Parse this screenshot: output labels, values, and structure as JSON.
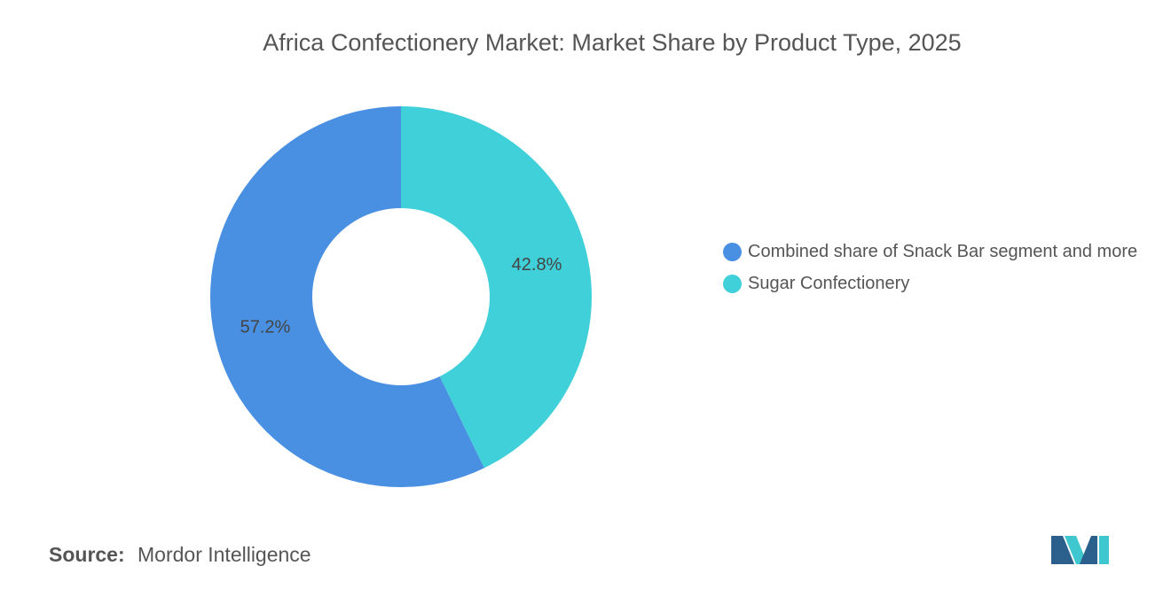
{
  "chart_data": {
    "type": "donut",
    "title": "Africa Confectionery Market: Market Share by Product Type, 2025",
    "categories": [
      "Combined share of Snack Bar segment and more",
      "Sugar Confectionery"
    ],
    "values": [
      57.2,
      42.8
    ],
    "value_labels": [
      "57.2%",
      "42.8%"
    ],
    "colors": [
      "#4a90e2",
      "#40d0da"
    ],
    "source_label": "Source:",
    "source": "Mordor Intelligence"
  }
}
